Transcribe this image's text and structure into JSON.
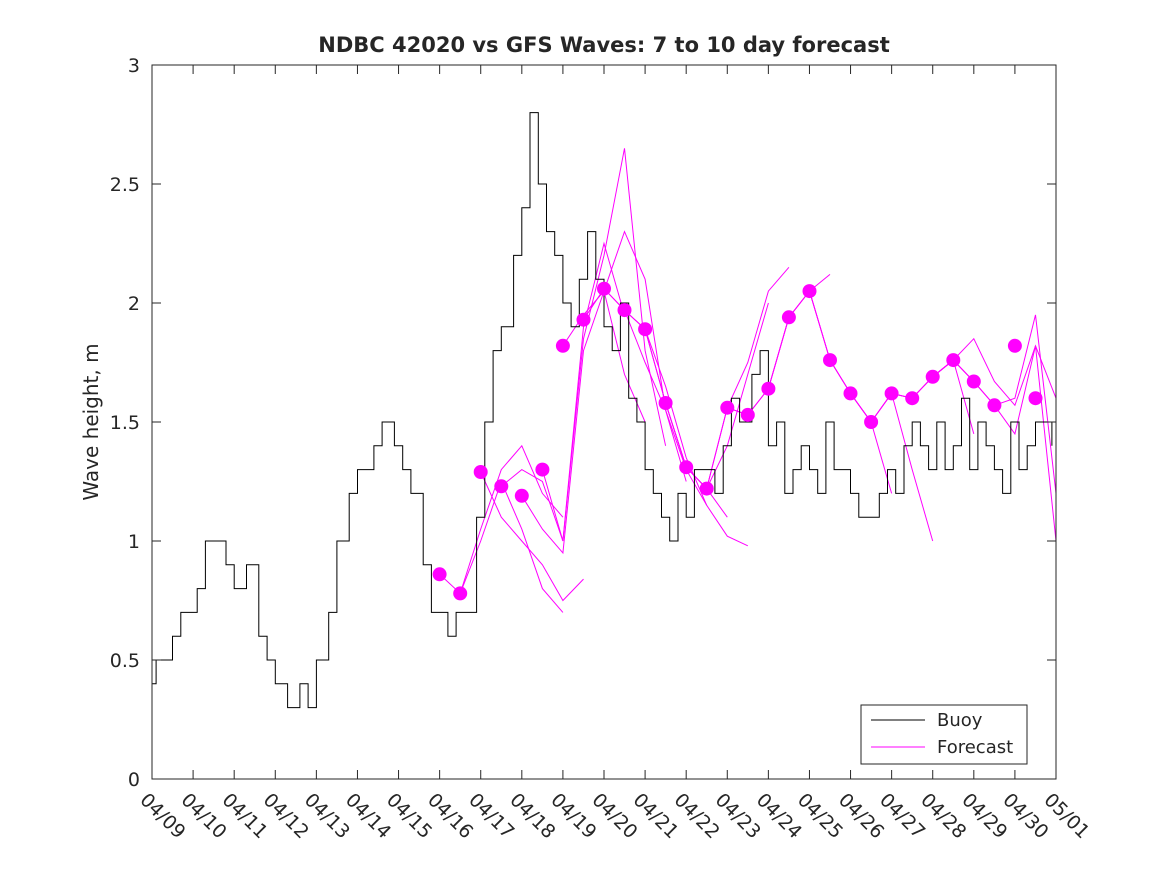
{
  "chart_data": {
    "type": "line",
    "title": "NDBC 42020 vs GFS Waves: 7 to 10 day forecast",
    "xlabel": "",
    "ylabel": "Wave height, m",
    "ylim": [
      0,
      3
    ],
    "yticks": [
      "0",
      "0.5",
      "1",
      "1.5",
      "2",
      "2.5",
      "3"
    ],
    "xlim": [
      "04/09",
      "05/01"
    ],
    "xticks": [
      "04/09",
      "04/10",
      "04/11",
      "04/12",
      "04/13",
      "04/14",
      "04/15",
      "04/16",
      "04/17",
      "04/18",
      "04/19",
      "04/20",
      "04/21",
      "04/22",
      "04/23",
      "04/24",
      "04/25",
      "04/26",
      "04/27",
      "04/28",
      "04/29",
      "04/30",
      "05/01"
    ],
    "grid": false,
    "legend_position": "bottom-right",
    "legend": [
      {
        "label": "Buoy",
        "color": "#000000"
      },
      {
        "label": "Forecast",
        "color": "#ff00ff"
      }
    ],
    "colors": {
      "buoy": "#000000",
      "forecast": "#ff00ff"
    },
    "buoy": {
      "name": "Buoy",
      "x_days": [
        0,
        0.1,
        0.3,
        0.5,
        0.7,
        0.9,
        1.1,
        1.3,
        1.5,
        1.8,
        2.0,
        2.3,
        2.6,
        2.8,
        3.0,
        3.3,
        3.6,
        3.8,
        4.0,
        4.3,
        4.5,
        4.8,
        5.0,
        5.2,
        5.4,
        5.6,
        5.9,
        6.1,
        6.3,
        6.6,
        6.8,
        7.0,
        7.2,
        7.4,
        7.7,
        7.9,
        8.1,
        8.3,
        8.5,
        8.8,
        9.0,
        9.2,
        9.4,
        9.6,
        9.8,
        10.0,
        10.2,
        10.4,
        10.6,
        10.8,
        11.0,
        11.2,
        11.4,
        11.6,
        11.8,
        12.0,
        12.2,
        12.4,
        12.6,
        12.8,
        13.0,
        13.2,
        13.5,
        13.7,
        13.9,
        14.1,
        14.3,
        14.6,
        14.8,
        15.0,
        15.2,
        15.4,
        15.6,
        15.8,
        16.0,
        16.2,
        16.4,
        16.6,
        16.8,
        17.0,
        17.2,
        17.5,
        17.7,
        17.9,
        18.1,
        18.3,
        18.5,
        18.7,
        18.9,
        19.1,
        19.3,
        19.5,
        19.7,
        19.9,
        20.1,
        20.3,
        20.5,
        20.7,
        20.9,
        21.1,
        21.3,
        21.5,
        21.7,
        21.9
      ],
      "values": [
        0.4,
        0.5,
        0.5,
        0.6,
        0.7,
        0.7,
        0.8,
        1.0,
        1.0,
        0.9,
        0.8,
        0.9,
        0.6,
        0.5,
        0.4,
        0.3,
        0.4,
        0.3,
        0.5,
        0.7,
        1.0,
        1.2,
        1.3,
        1.3,
        1.4,
        1.5,
        1.4,
        1.3,
        1.2,
        0.9,
        0.7,
        0.7,
        0.6,
        0.7,
        0.7,
        1.1,
        1.5,
        1.8,
        1.9,
        2.2,
        2.4,
        2.8,
        2.5,
        2.3,
        2.2,
        2.0,
        1.9,
        2.1,
        2.3,
        2.1,
        1.9,
        1.8,
        2.0,
        1.6,
        1.5,
        1.3,
        1.2,
        1.1,
        1.0,
        1.2,
        1.1,
        1.3,
        1.3,
        1.2,
        1.4,
        1.6,
        1.5,
        1.7,
        1.8,
        1.4,
        1.5,
        1.2,
        1.3,
        1.4,
        1.3,
        1.2,
        1.5,
        1.3,
        1.3,
        1.2,
        1.1,
        1.1,
        1.2,
        1.3,
        1.2,
        1.4,
        1.5,
        1.4,
        1.3,
        1.5,
        1.3,
        1.4,
        1.6,
        1.3,
        1.5,
        1.4,
        1.3,
        1.2,
        1.5,
        1.3,
        1.4,
        1.5,
        1.5,
        1.4
      ]
    },
    "forecast_traces": [
      {
        "name": "Forecast",
        "x_days": [
          7.0,
          7.5,
          8.0,
          8.5,
          9.0,
          9.5,
          10.0
        ],
        "values": [
          0.86,
          0.78,
          1.05,
          1.3,
          1.4,
          1.2,
          1.1
        ]
      },
      {
        "name": "Forecast",
        "x_days": [
          7.5,
          8.0,
          8.5,
          9.0,
          9.5,
          10.0
        ],
        "values": [
          0.78,
          1.0,
          1.25,
          1.05,
          0.8,
          0.7
        ]
      },
      {
        "name": "Forecast",
        "x_days": [
          8.0,
          8.5,
          9.0,
          9.5,
          10.0,
          10.5
        ],
        "values": [
          1.29,
          1.1,
          1.0,
          0.9,
          0.75,
          0.84
        ]
      },
      {
        "name": "Forecast",
        "x_days": [
          8.5,
          9.0,
          9.5,
          10.0,
          10.5,
          11.0,
          11.5
        ],
        "values": [
          1.23,
          1.3,
          1.25,
          1.0,
          1.9,
          2.25,
          1.95
        ]
      },
      {
        "name": "Forecast",
        "x_days": [
          9.0,
          9.5,
          10.0,
          10.5,
          11.0,
          11.5,
          12.0
        ],
        "values": [
          1.19,
          1.05,
          0.95,
          1.8,
          2.05,
          1.7,
          1.5
        ]
      },
      {
        "name": "Forecast",
        "x_days": [
          9.5,
          10.0,
          10.5,
          11.0,
          11.5,
          12.0,
          12.5
        ],
        "values": [
          1.3,
          1.0,
          1.85,
          2.2,
          2.65,
          1.8,
          1.4
        ]
      },
      {
        "name": "Forecast",
        "x_days": [
          10.0,
          10.5,
          11.0,
          11.5,
          12.0,
          12.5,
          13.0
        ],
        "values": [
          1.82,
          1.95,
          2.05,
          2.3,
          2.1,
          1.55,
          1.25
        ]
      },
      {
        "name": "Forecast",
        "x_days": [
          10.5,
          11.0,
          11.5,
          12.0,
          12.5,
          13.0,
          13.5
        ],
        "values": [
          1.93,
          2.06,
          1.97,
          1.75,
          1.55,
          1.3,
          1.15
        ]
      },
      {
        "name": "Forecast",
        "x_days": [
          11.0,
          11.5,
          12.0,
          12.5,
          13.0,
          13.5,
          14.0
        ],
        "values": [
          2.06,
          1.97,
          1.89,
          1.58,
          1.31,
          1.22,
          1.1
        ]
      },
      {
        "name": "Forecast",
        "x_days": [
          11.5,
          12.0,
          12.5,
          13.0,
          13.5,
          14.0,
          14.5
        ],
        "values": [
          1.97,
          1.89,
          1.65,
          1.35,
          1.15,
          1.02,
          0.98
        ]
      },
      {
        "name": "Forecast",
        "x_days": [
          12.0,
          12.5,
          13.0,
          13.5,
          14.0,
          14.5,
          15.0
        ],
        "values": [
          1.89,
          1.58,
          1.31,
          1.22,
          1.4,
          1.7,
          2.0
        ]
      },
      {
        "name": "Forecast",
        "x_days": [
          12.5,
          13.0,
          13.5,
          14.0,
          14.5,
          15.0,
          15.5
        ],
        "values": [
          1.58,
          1.31,
          1.22,
          1.56,
          1.75,
          2.05,
          2.15
        ]
      },
      {
        "name": "Forecast",
        "x_days": [
          13.5,
          14.0,
          14.5,
          15.0,
          15.5,
          16.0,
          16.5
        ],
        "values": [
          1.22,
          1.56,
          1.53,
          1.64,
          1.94,
          2.05,
          2.12
        ]
      },
      {
        "name": "Forecast",
        "x_days": [
          14.0,
          14.5,
          15.0,
          15.5,
          16.0,
          16.5,
          17.0,
          17.5,
          18.0
        ],
        "values": [
          1.56,
          1.53,
          1.64,
          1.94,
          2.05,
          1.76,
          1.62,
          1.5,
          1.2
        ]
      },
      {
        "name": "Forecast",
        "x_days": [
          15.0,
          15.5,
          16.0,
          16.5,
          17.0,
          17.5,
          18.0,
          18.5,
          19.0
        ],
        "values": [
          1.64,
          1.94,
          2.05,
          1.76,
          1.62,
          1.5,
          1.62,
          1.3,
          1.0
        ]
      },
      {
        "name": "Forecast",
        "x_days": [
          16.0,
          16.5,
          17.0,
          17.5,
          18.0,
          18.5,
          19.0,
          19.5,
          20.0
        ],
        "values": [
          2.05,
          1.76,
          1.62,
          1.5,
          1.62,
          1.6,
          1.69,
          1.76,
          1.45
        ]
      },
      {
        "name": "Forecast",
        "x_days": [
          17.0,
          17.5,
          18.0,
          18.5,
          19.0,
          19.5,
          20.0,
          20.5,
          21.0,
          21.5,
          22.0
        ],
        "values": [
          1.62,
          1.5,
          1.62,
          1.6,
          1.69,
          1.76,
          1.85,
          1.67,
          1.57,
          1.82,
          1.6
        ]
      },
      {
        "name": "Forecast",
        "x_days": [
          18.0,
          18.5,
          19.0,
          19.5,
          20.0,
          20.5,
          21.0,
          21.5,
          22.0
        ],
        "values": [
          1.62,
          1.6,
          1.69,
          1.76,
          1.67,
          1.57,
          1.6,
          1.95,
          1.2
        ]
      },
      {
        "name": "Forecast",
        "x_days": [
          19.0,
          19.5,
          20.0,
          20.5,
          21.0,
          21.5,
          22.0
        ],
        "values": [
          1.69,
          1.76,
          1.67,
          1.57,
          1.45,
          1.82,
          1.0
        ]
      }
    ],
    "forecast_points": {
      "name": "Forecast",
      "x_days": [
        7.0,
        7.5,
        8.0,
        8.5,
        9.0,
        9.5,
        10.0,
        10.5,
        11.0,
        11.5,
        12.0,
        12.5,
        13.0,
        13.5,
        14.0,
        14.5,
        15.0,
        15.5,
        16.0,
        16.5,
        17.0,
        17.5,
        18.0,
        18.5,
        19.0,
        19.5,
        20.0,
        20.5,
        21.0,
        21.5
      ],
      "values": [
        0.86,
        0.78,
        1.29,
        1.23,
        1.19,
        1.3,
        1.82,
        1.93,
        2.06,
        1.97,
        1.89,
        1.58,
        1.31,
        1.22,
        1.56,
        1.53,
        1.64,
        1.94,
        2.05,
        1.76,
        1.62,
        1.5,
        1.62,
        1.6,
        1.69,
        1.76,
        1.67,
        1.57,
        1.82,
        1.6
      ]
    }
  }
}
